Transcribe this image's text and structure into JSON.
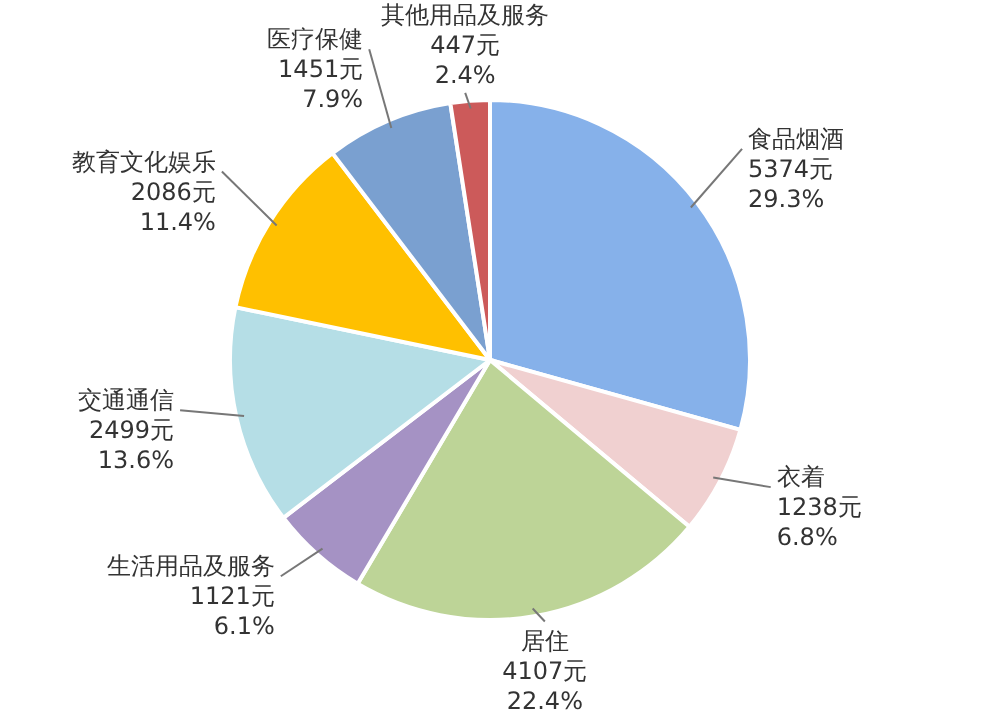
{
  "chart_data": {
    "type": "pie",
    "categories": [
      "食品烟酒",
      "衣着",
      "居住",
      "生活用品及服务",
      "交通通信",
      "教育文化娱乐",
      "医疗保健",
      "其他用品及服务"
    ],
    "values": [
      5374,
      1238,
      4107,
      1121,
      2499,
      2086,
      1451,
      447
    ],
    "value_labels": [
      "5374元\n29.3%",
      "1238元\n6.8%",
      "4107元\n22.4%",
      "1121元\n6.1%",
      "2499元\n13.6%",
      "2086元\n11.4%",
      "1451元\n7.9%",
      "447元\n2.4%"
    ],
    "colors": [
      "#86b1ea",
      "#f0d0d0",
      "#bdd497",
      "#a592c4",
      "#b5dee6",
      "#ffc000",
      "#7aa0d0",
      "#cc5a5a"
    ]
  }
}
